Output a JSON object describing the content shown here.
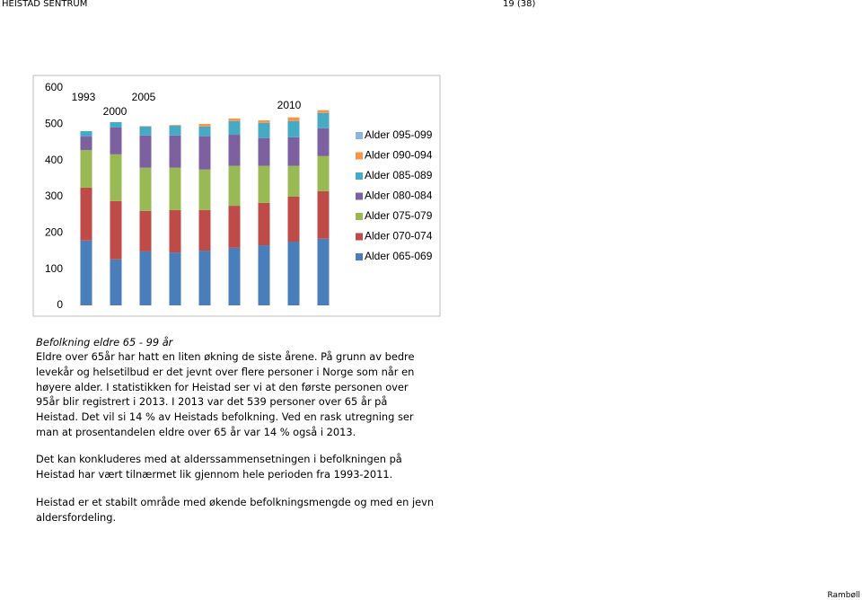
{
  "header": {
    "left": "HEISTAD SENTRUM",
    "right": "19 (38)"
  },
  "chart_data": {
    "type": "bar",
    "stacked": true,
    "categories": [
      null,
      null,
      null,
      null,
      null,
      null,
      null,
      null,
      null
    ],
    "annotations": [
      "1993",
      "2000",
      "2005",
      "2010"
    ],
    "ylim": [
      0,
      600
    ],
    "yticks": [
      0,
      100,
      200,
      300,
      400,
      500,
      600
    ],
    "grid": false,
    "legend": "right",
    "series": [
      {
        "name": "Alder 065-069",
        "color": "#4a7ebb",
        "values": [
          179,
          127,
          149,
          146,
          151,
          159,
          166,
          176,
          184
        ]
      },
      {
        "name": "Alder 070-074",
        "color": "#be4b48",
        "values": [
          146,
          161,
          112,
          117,
          112,
          116,
          117,
          124,
          131
        ]
      },
      {
        "name": "Alder 075-079",
        "color": "#98b954",
        "values": [
          104,
          129,
          119,
          117,
          112,
          110,
          102,
          85,
          97
        ]
      },
      {
        "name": "Alder 080-084",
        "color": "#7d60a0",
        "values": [
          37,
          74,
          89,
          89,
          92,
          86,
          77,
          79,
          77
        ]
      },
      {
        "name": "Alder 085-089",
        "color": "#46aac5",
        "values": [
          15,
          15,
          25,
          27,
          27,
          38,
          42,
          45,
          42
        ]
      },
      {
        "name": "Alder 090-094",
        "color": "#f79646",
        "values": [
          0,
          0,
          1,
          2,
          7,
          7,
          7,
          10,
          7
        ]
      },
      {
        "name": "Alder 095-099",
        "color": "#8eb4e3",
        "values": [
          0,
          0,
          0,
          0,
          0,
          0,
          0,
          0,
          1
        ]
      }
    ]
  },
  "caption": "Befolkning eldre 65 - 99 år",
  "paragraphs": [
    [
      "Eldre over 65år har hatt en liten økning de siste årene. På grunn av bedre",
      "levekår og helsetilbud er det jevnt over flere personer i Norge som når en",
      "høyere alder. I statistikken for Heistad ser vi at den første personen over",
      "95år blir registrert i 2013. I 2013 var det 539 personer over 65 år på",
      "Heistad. Det vil si 14 % av Heistads befolkning. Ved en rask utregning ser",
      "man at prosentandelen eldre over 65 år var 14 % også i 2013."
    ],
    [
      "Det kan konkluderes med at alderssammensetningen i befolkningen på",
      "Heistad har vært tilnærmet lik gjennom hele perioden fra 1993-2011."
    ],
    [
      "Heistad er et stabilt område med økende befolkningsmengde og med en jevn",
      "aldersfordeling."
    ]
  ],
  "footer": "Rambøll"
}
